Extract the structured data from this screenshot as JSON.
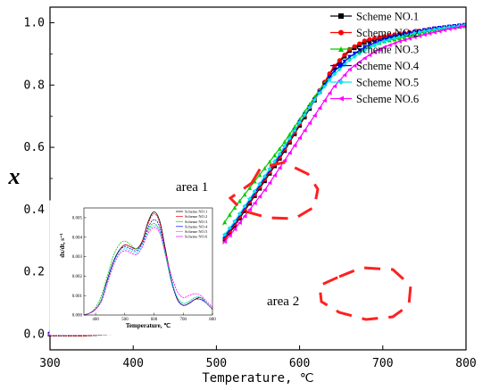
{
  "chart_data": [
    {
      "type": "line",
      "xlabel": "Temperature, ℃",
      "ylabel": "x",
      "xlim": [
        300,
        800
      ],
      "ylim": [
        1.05,
        -0.05
      ],
      "y_inverted": true,
      "x_ticks": [
        300,
        400,
        500,
        600,
        700,
        800
      ],
      "y_ticks": [
        "0.0",
        "0.2",
        "0.4",
        "0.6",
        "0.8",
        "1.0"
      ],
      "legend_position": "top-right",
      "series": [
        {
          "name": "Scheme NO.1",
          "color": "#000000",
          "marker": "square",
          "x": [
            300,
            340,
            380,
            400,
            420,
            440,
            460,
            480,
            500,
            520,
            540,
            560,
            580,
            600,
            620,
            640,
            660,
            680,
            700,
            720,
            740,
            760,
            780,
            800
          ],
          "y": [
            0.0,
            0.0,
            0.005,
            0.02,
            0.05,
            0.09,
            0.14,
            0.2,
            0.27,
            0.34,
            0.42,
            0.5,
            0.58,
            0.67,
            0.76,
            0.85,
            0.91,
            0.94,
            0.95,
            0.96,
            0.97,
            0.98,
            0.985,
            0.99
          ]
        },
        {
          "name": "Scheme NO.2",
          "color": "#ff0000",
          "marker": "circle",
          "x": [
            300,
            340,
            380,
            400,
            420,
            440,
            460,
            480,
            500,
            520,
            540,
            560,
            580,
            600,
            620,
            640,
            660,
            680,
            700,
            720,
            740,
            760,
            780,
            800
          ],
          "y": [
            0.0,
            0.0,
            0.006,
            0.022,
            0.052,
            0.093,
            0.145,
            0.205,
            0.275,
            0.345,
            0.425,
            0.505,
            0.585,
            0.675,
            0.765,
            0.855,
            0.915,
            0.945,
            0.955,
            0.965,
            0.972,
            0.98,
            0.986,
            0.99
          ]
        },
        {
          "name": "Scheme NO.3",
          "color": "#00cc00",
          "marker": "triangle-up",
          "x": [
            300,
            340,
            380,
            400,
            420,
            440,
            460,
            480,
            500,
            520,
            540,
            560,
            580,
            600,
            620,
            640,
            660,
            680,
            700,
            720,
            740,
            760,
            780,
            800
          ],
          "y": [
            0.01,
            0.015,
            0.025,
            0.04,
            0.07,
            0.11,
            0.17,
            0.24,
            0.32,
            0.4,
            0.47,
            0.54,
            0.61,
            0.69,
            0.77,
            0.84,
            0.89,
            0.92,
            0.94,
            0.95,
            0.965,
            0.975,
            0.985,
            0.99
          ]
        },
        {
          "name": "Scheme NO.4",
          "color": "#0000ff",
          "marker": "triangle-down",
          "x": [
            300,
            340,
            380,
            400,
            420,
            440,
            460,
            480,
            500,
            520,
            540,
            560,
            580,
            600,
            620,
            640,
            660,
            680,
            700,
            720,
            740,
            760,
            780,
            800
          ],
          "y": [
            0.0,
            0.002,
            0.01,
            0.025,
            0.055,
            0.095,
            0.15,
            0.21,
            0.28,
            0.35,
            0.43,
            0.51,
            0.59,
            0.68,
            0.76,
            0.84,
            0.89,
            0.925,
            0.945,
            0.96,
            0.97,
            0.98,
            0.987,
            0.993
          ]
        },
        {
          "name": "Scheme NO.5",
          "color": "#00e5ee",
          "marker": "diamond",
          "x": [
            300,
            340,
            380,
            400,
            420,
            440,
            460,
            480,
            500,
            520,
            540,
            560,
            580,
            600,
            620,
            640,
            660,
            680,
            700,
            720,
            740,
            760,
            780,
            800
          ],
          "y": [
            0.0,
            0.003,
            0.012,
            0.028,
            0.058,
            0.1,
            0.155,
            0.215,
            0.285,
            0.355,
            0.435,
            0.515,
            0.595,
            0.68,
            0.76,
            0.83,
            0.88,
            0.915,
            0.94,
            0.955,
            0.968,
            0.978,
            0.986,
            0.992
          ]
        },
        {
          "name": "Scheme NO.6",
          "color": "#ff00ff",
          "marker": "triangle-left",
          "x": [
            300,
            340,
            380,
            400,
            420,
            440,
            460,
            480,
            500,
            520,
            540,
            560,
            580,
            600,
            620,
            640,
            660,
            680,
            700,
            720,
            740,
            760,
            780,
            800
          ],
          "y": [
            0.0,
            0.002,
            0.01,
            0.025,
            0.053,
            0.092,
            0.142,
            0.2,
            0.265,
            0.33,
            0.4,
            0.47,
            0.55,
            0.63,
            0.71,
            0.79,
            0.85,
            0.89,
            0.92,
            0.94,
            0.955,
            0.968,
            0.98,
            0.99
          ]
        }
      ],
      "annotations": [
        {
          "text": "area 1",
          "x": 555,
          "y": 0.57
        },
        {
          "text": "area 2",
          "x": 672,
          "y": 0.9
        }
      ]
    },
    {
      "type": "line",
      "role": "inset",
      "xlabel": "Temperature,  ℃",
      "ylabel": "dx/dt,  s⁻¹",
      "xlim": [
        360,
        800
      ],
      "ylim": [
        0,
        0.0055
      ],
      "x_ticks": [
        400,
        500,
        600,
        700,
        800
      ],
      "y_ticks": [
        "0.000",
        "0.001",
        "0.002",
        "0.003",
        "0.004",
        "0.005"
      ],
      "legend_position": "top-right",
      "series": [
        {
          "name": "Scheme NO.1",
          "color": "#000000",
          "x": [
            360,
            380,
            400,
            420,
            440,
            460,
            480,
            500,
            520,
            540,
            560,
            580,
            600,
            620,
            640,
            660,
            680,
            700,
            720,
            740,
            760,
            780,
            800
          ],
          "y": [
            0.0,
            0.0001,
            0.0003,
            0.0008,
            0.0018,
            0.0027,
            0.0033,
            0.0036,
            0.0035,
            0.0034,
            0.0038,
            0.0048,
            0.0053,
            0.0048,
            0.0033,
            0.0018,
            0.0008,
            0.0005,
            0.0006,
            0.0008,
            0.0009,
            0.0006,
            0.0003
          ]
        },
        {
          "name": "Scheme NO.2",
          "color": "#ff0000",
          "x": [
            360,
            380,
            400,
            420,
            440,
            460,
            480,
            500,
            520,
            540,
            560,
            580,
            600,
            620,
            640,
            660,
            680,
            700,
            720,
            740,
            760,
            780,
            800
          ],
          "y": [
            0.0,
            0.0001,
            0.0003,
            0.0008,
            0.0018,
            0.0027,
            0.0033,
            0.0036,
            0.0035,
            0.0034,
            0.0038,
            0.0047,
            0.0052,
            0.0047,
            0.0032,
            0.0017,
            0.0008,
            0.0005,
            0.0006,
            0.0008,
            0.0008,
            0.0006,
            0.0003
          ]
        },
        {
          "name": "Scheme NO.3",
          "color": "#00cc00",
          "x": [
            360,
            380,
            400,
            420,
            440,
            460,
            480,
            500,
            520,
            540,
            560,
            580,
            600,
            620,
            640,
            660,
            680,
            700,
            720,
            740,
            760,
            780,
            800
          ],
          "y": [
            0.0,
            0.0001,
            0.0004,
            0.001,
            0.002,
            0.003,
            0.0036,
            0.0038,
            0.0036,
            0.0034,
            0.0037,
            0.0044,
            0.0047,
            0.0043,
            0.003,
            0.0017,
            0.0009,
            0.0006,
            0.0007,
            0.0009,
            0.0009,
            0.0006,
            0.0003
          ]
        },
        {
          "name": "Scheme NO.4",
          "color": "#0000ff",
          "x": [
            360,
            380,
            400,
            420,
            440,
            460,
            480,
            500,
            520,
            540,
            560,
            580,
            600,
            620,
            640,
            660,
            680,
            700,
            720,
            740,
            760,
            780,
            800
          ],
          "y": [
            0.0,
            0.0001,
            0.0003,
            0.0008,
            0.0018,
            0.0027,
            0.0033,
            0.0035,
            0.0034,
            0.0033,
            0.0037,
            0.0045,
            0.0049,
            0.0045,
            0.0031,
            0.0017,
            0.0008,
            0.0005,
            0.0006,
            0.0008,
            0.0008,
            0.0006,
            0.0003
          ]
        },
        {
          "name": "Scheme NO.5",
          "color": "#00e5ee",
          "x": [
            360,
            380,
            400,
            420,
            440,
            460,
            480,
            500,
            520,
            540,
            560,
            580,
            600,
            620,
            640,
            660,
            680,
            700,
            720,
            740,
            760,
            780,
            800
          ],
          "y": [
            0.0,
            0.0001,
            0.0003,
            0.0008,
            0.0017,
            0.0026,
            0.0032,
            0.0034,
            0.0033,
            0.0032,
            0.0036,
            0.0043,
            0.0046,
            0.0043,
            0.0031,
            0.0018,
            0.0009,
            0.0006,
            0.0007,
            0.0009,
            0.0009,
            0.0006,
            0.0003
          ]
        },
        {
          "name": "Scheme NO.6",
          "color": "#ff00ff",
          "x": [
            360,
            380,
            400,
            420,
            440,
            460,
            480,
            500,
            520,
            540,
            560,
            580,
            600,
            620,
            640,
            660,
            680,
            700,
            720,
            740,
            760,
            780,
            800
          ],
          "y": [
            0.0,
            0.0001,
            0.0003,
            0.0007,
            0.0016,
            0.0025,
            0.0031,
            0.0033,
            0.0032,
            0.0031,
            0.0035,
            0.0042,
            0.0045,
            0.0042,
            0.0031,
            0.002,
            0.0012,
            0.0009,
            0.001,
            0.0011,
            0.001,
            0.0007,
            0.0004
          ]
        }
      ]
    }
  ]
}
